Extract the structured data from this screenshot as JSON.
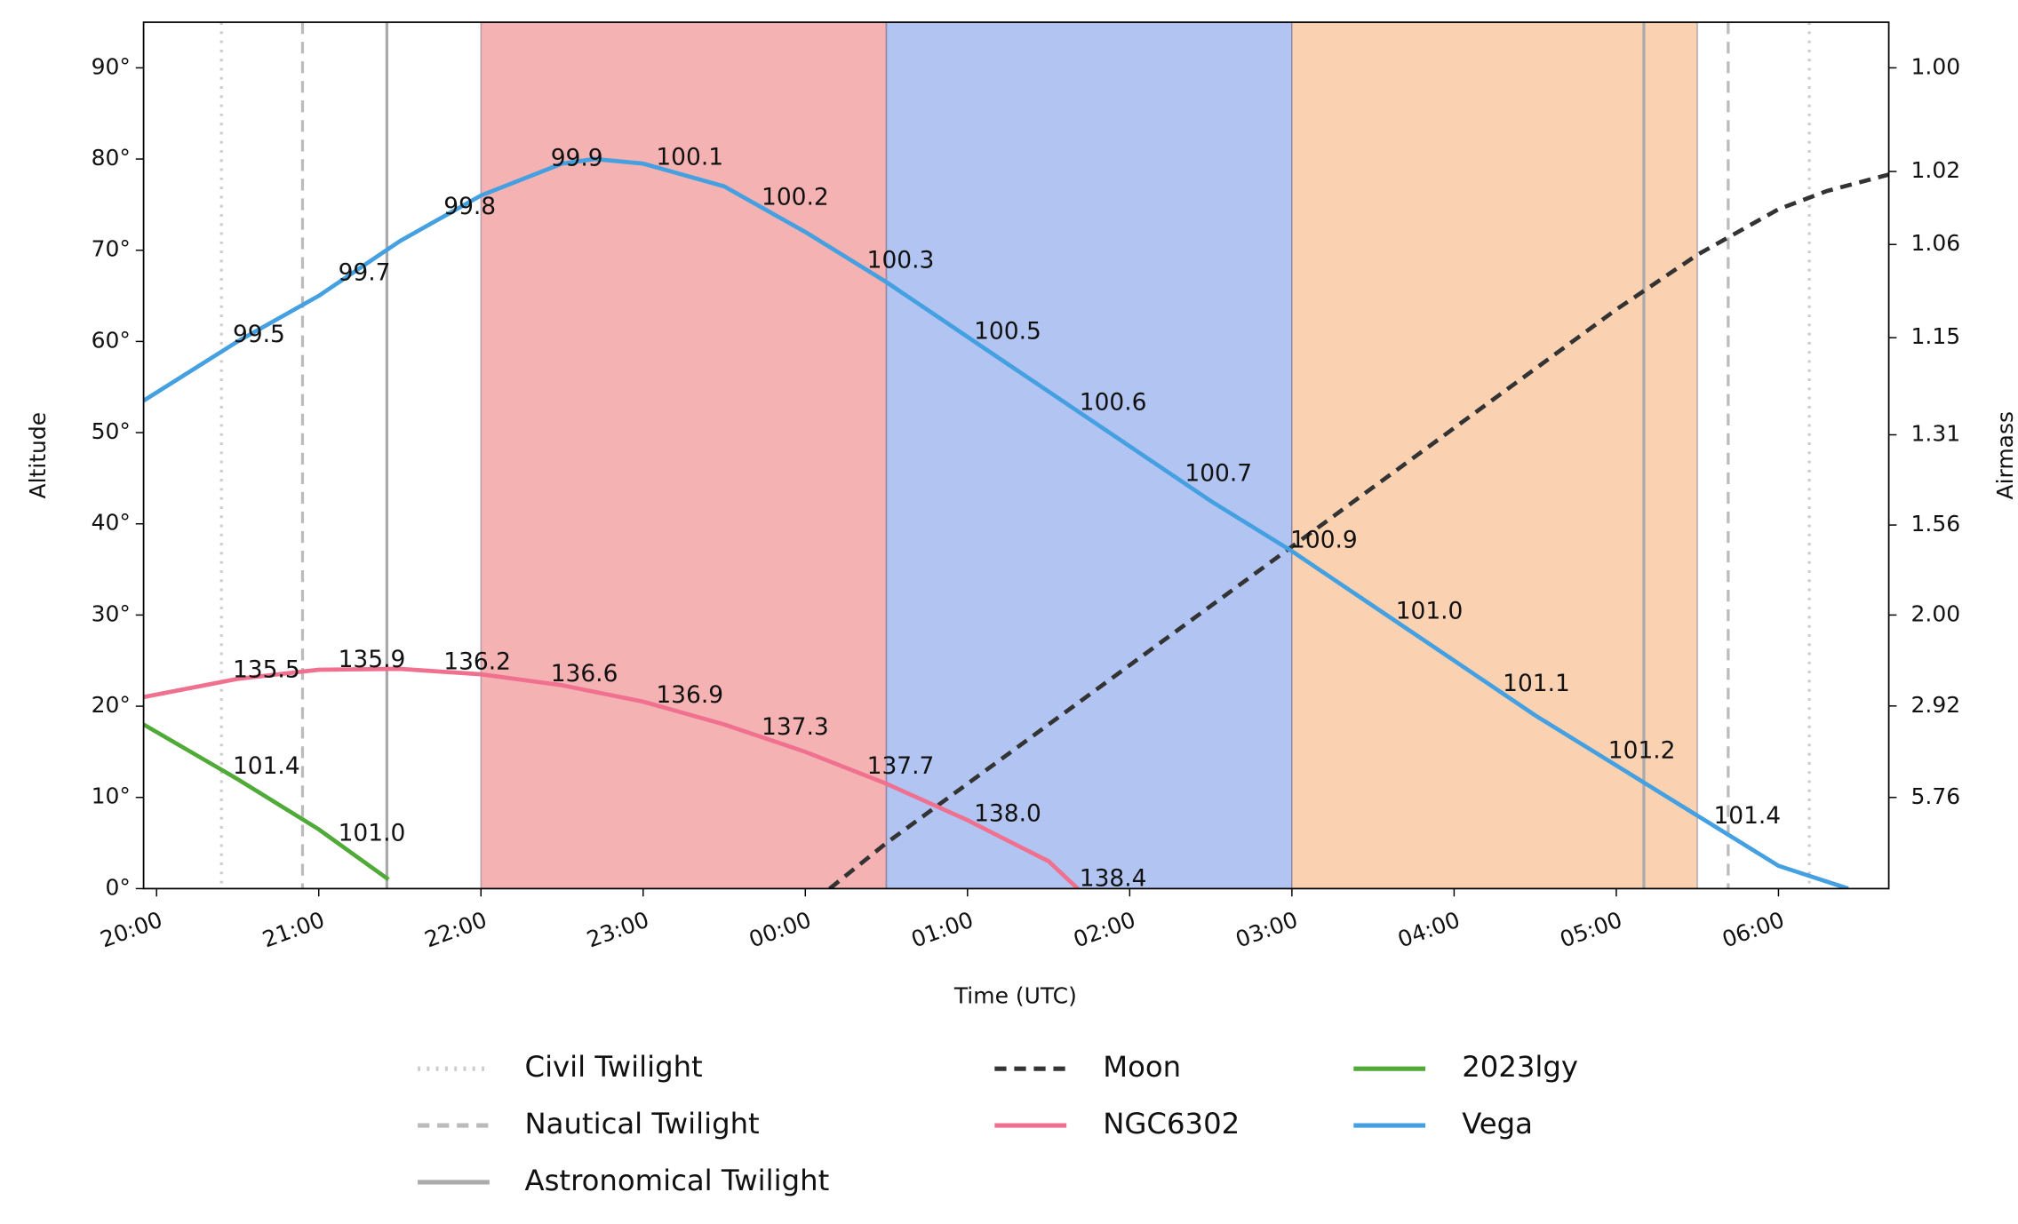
{
  "chart_data": {
    "type": "line",
    "xlabel": "Time (UTC)",
    "ylabel": "Altitude",
    "y2label": "Airmass",
    "xlim": [
      19.92,
      30.68
    ],
    "ylim": [
      0,
      95
    ],
    "y2scale": "airmass",
    "xticks": [
      {
        "value": 20,
        "label": "20:00"
      },
      {
        "value": 21,
        "label": "21:00"
      },
      {
        "value": 22,
        "label": "22:00"
      },
      {
        "value": 23,
        "label": "23:00"
      },
      {
        "value": 24,
        "label": "00:00"
      },
      {
        "value": 25,
        "label": "01:00"
      },
      {
        "value": 26,
        "label": "02:00"
      },
      {
        "value": 27,
        "label": "03:00"
      },
      {
        "value": 28,
        "label": "04:00"
      },
      {
        "value": 29,
        "label": "05:00"
      },
      {
        "value": 30,
        "label": "06:00"
      }
    ],
    "yticks": [
      {
        "value": 0,
        "label": "0°"
      },
      {
        "value": 10,
        "label": "10°"
      },
      {
        "value": 20,
        "label": "20°"
      },
      {
        "value": 30,
        "label": "30°"
      },
      {
        "value": 40,
        "label": "40°"
      },
      {
        "value": 50,
        "label": "50°"
      },
      {
        "value": 60,
        "label": "60°"
      },
      {
        "value": 70,
        "label": "70°"
      },
      {
        "value": 80,
        "label": "80°"
      },
      {
        "value": 90,
        "label": "90°"
      }
    ],
    "y2ticks": [
      {
        "value": 1,
        "label": "1.00"
      },
      {
        "value": 1.02,
        "label": "1.02"
      },
      {
        "value": 1.06,
        "label": "1.06"
      },
      {
        "value": 1.15,
        "label": "1.15"
      },
      {
        "value": 1.31,
        "label": "1.31"
      },
      {
        "value": 1.56,
        "label": "1.56"
      },
      {
        "value": 2,
        "label": "2.00"
      },
      {
        "value": 2.92,
        "label": "2.92"
      },
      {
        "value": 5.76,
        "label": "5.76"
      }
    ],
    "spans": [
      {
        "start": 22,
        "end": 24.5,
        "color": "#f5b2b2"
      },
      {
        "start": 24.5,
        "end": 27,
        "color": "#b2c4f2"
      },
      {
        "start": 27,
        "end": 29.5,
        "color": "#fad2b2"
      }
    ],
    "series": [
      {
        "name": "Civil Twilight",
        "kind": "vline",
        "dash": "dotted",
        "color": "#cccccc",
        "x": [
          20.4,
          30.19
        ]
      },
      {
        "name": "Nautical Twilight",
        "kind": "vline",
        "dash": "dashed",
        "color": "#bbbbbb",
        "x": [
          20.9,
          29.69
        ]
      },
      {
        "name": "Astronomical Twilight",
        "kind": "vline",
        "dash": "solid",
        "color": "#aaaaaa",
        "x": [
          21.42,
          29.17
        ]
      },
      {
        "name": "Moon",
        "dash": "dashed",
        "color": "#333333",
        "x": [
          24.15,
          24.5,
          25,
          25.5,
          26,
          26.5,
          27,
          27.5,
          28,
          28.5,
          29,
          29.5,
          30,
          30.3,
          30.68
        ],
        "values": [
          0,
          5,
          11.5,
          18,
          24.5,
          31,
          37.5,
          44,
          50.5,
          57,
          63.5,
          69.5,
          74.5,
          76.5,
          78.3
        ]
      },
      {
        "name": "NGC6302",
        "dash": "solid",
        "color": "#f07090",
        "x": [
          19.92,
          20.5,
          21,
          21.5,
          22,
          22.5,
          23,
          23.5,
          24,
          24.5,
          25,
          25.5,
          25.68
        ],
        "values": [
          21,
          23,
          24,
          24.1,
          23.5,
          22.3,
          20.5,
          18,
          15,
          11.5,
          7.5,
          3,
          0
        ],
        "annotations": {
          "x": [
            20.47,
            21.12,
            21.77,
            22.43,
            23.08,
            23.73,
            24.38,
            25.04,
            25.69
          ],
          "values": [
            135.5,
            135.9,
            136.2,
            136.6,
            136.9,
            137.3,
            137.7,
            138.0,
            138.4
          ],
          "value_labels": [
            "135.5",
            "135.9",
            "136.2",
            "136.6",
            "136.9",
            "137.3",
            "137.7",
            "138.0",
            "138.4"
          ]
        }
      },
      {
        "name": "2023lgy",
        "dash": "solid",
        "color": "#50aa38",
        "x": [
          19.92,
          20.5,
          21,
          21.43
        ],
        "values": [
          18,
          12,
          6.5,
          1
        ],
        "annotations": {
          "x": [
            20.47,
            21.12
          ],
          "values": [
            101.4,
            101.0
          ],
          "value_labels": [
            "101.4",
            "101.0"
          ]
        }
      },
      {
        "name": "Vega",
        "dash": "solid",
        "color": "#44a0e0",
        "x": [
          19.92,
          20.5,
          21,
          21.5,
          22,
          22.5,
          22.7,
          23,
          23.5,
          24,
          24.5,
          25,
          25.5,
          26,
          26.5,
          27,
          27.5,
          28,
          28.5,
          29,
          29.5,
          30,
          30.43
        ],
        "values": [
          53.5,
          60,
          65,
          71,
          76,
          79.5,
          80,
          79.5,
          77,
          72,
          66.5,
          60.5,
          54.5,
          48.5,
          42.5,
          37,
          31,
          25,
          19,
          13.5,
          8,
          2.5,
          0
        ],
        "annotations": {
          "x": [
            20.47,
            21.12,
            21.77,
            22.43,
            23.08,
            23.73,
            24.38,
            25.04,
            25.69,
            26.34,
            26.99,
            27.64,
            28.3,
            28.95,
            29.6
          ],
          "values": [
            99.5,
            99.7,
            99.8,
            99.9,
            100.1,
            100.2,
            100.3,
            100.5,
            100.6,
            100.7,
            100.9,
            101.0,
            101.1,
            101.2,
            101.4
          ],
          "value_labels": [
            "99.5",
            "99.7",
            "99.8",
            "99.9",
            "100.1",
            "100.2",
            "100.3",
            "100.5",
            "100.6",
            "100.7",
            "100.9",
            "101.0",
            "101.1",
            "101.2",
            "101.4"
          ]
        }
      }
    ]
  }
}
